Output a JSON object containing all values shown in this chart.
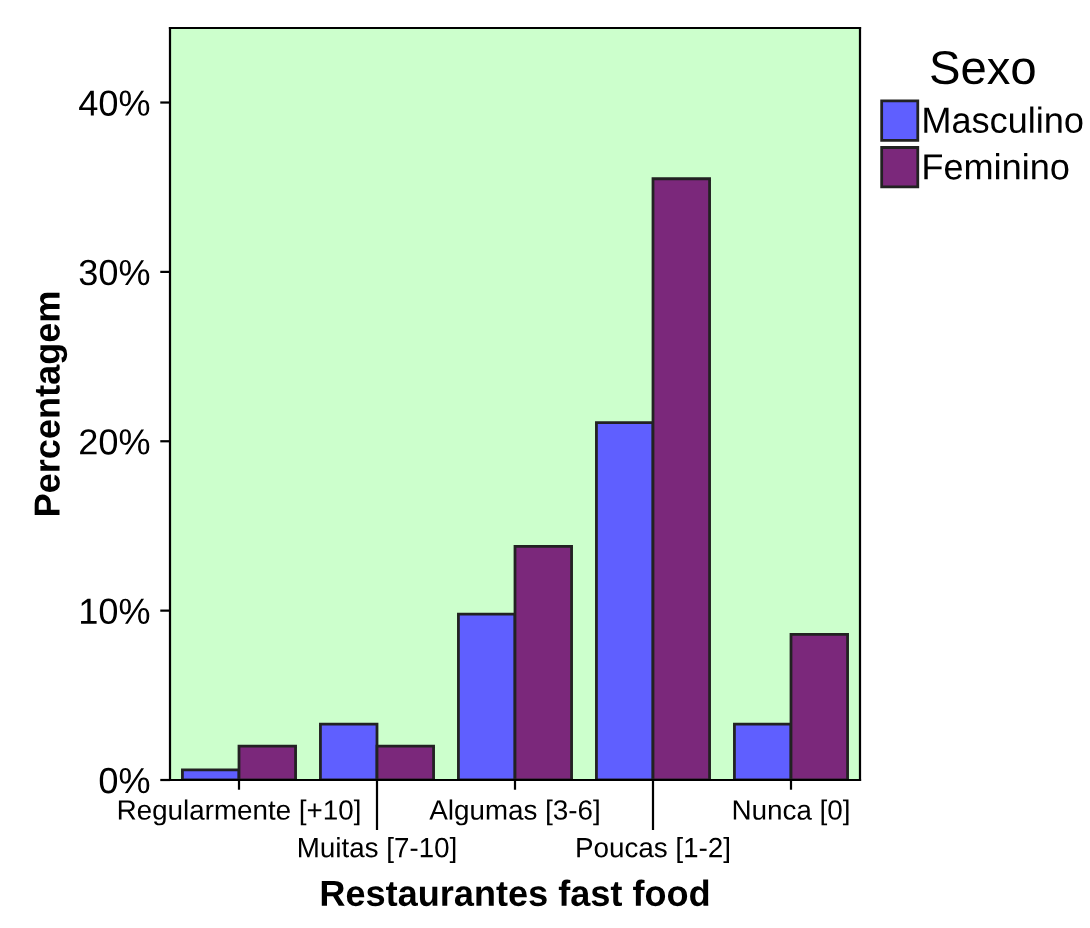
{
  "chart_data": {
    "type": "bar",
    "xlabel": "Restaurantes fast food",
    "ylabel": "Percentagem",
    "legend_title": "Sexo",
    "categories": [
      "Regularmente [+10]",
      "Muitas [7-10]",
      "Algumas [3-6]",
      "Poucas [1-2]",
      "Nunca [0]"
    ],
    "series": [
      {
        "name": "Masculino",
        "color": "#5f5fff",
        "values": [
          0.6,
          3.3,
          9.8,
          21.1,
          3.3
        ]
      },
      {
        "name": "Feminino",
        "color": "#7b287b",
        "values": [
          2.0,
          2.0,
          13.8,
          35.5,
          8.6
        ]
      }
    ],
    "ylim": [
      0,
      44.4
    ],
    "yticks": [
      {
        "value": 0,
        "label": "0%"
      },
      {
        "value": 10,
        "label": "10%"
      },
      {
        "value": 20,
        "label": "20%"
      },
      {
        "value": 30,
        "label": "30%"
      },
      {
        "value": 40,
        "label": "40%"
      }
    ],
    "grid": false,
    "legend": "right"
  }
}
